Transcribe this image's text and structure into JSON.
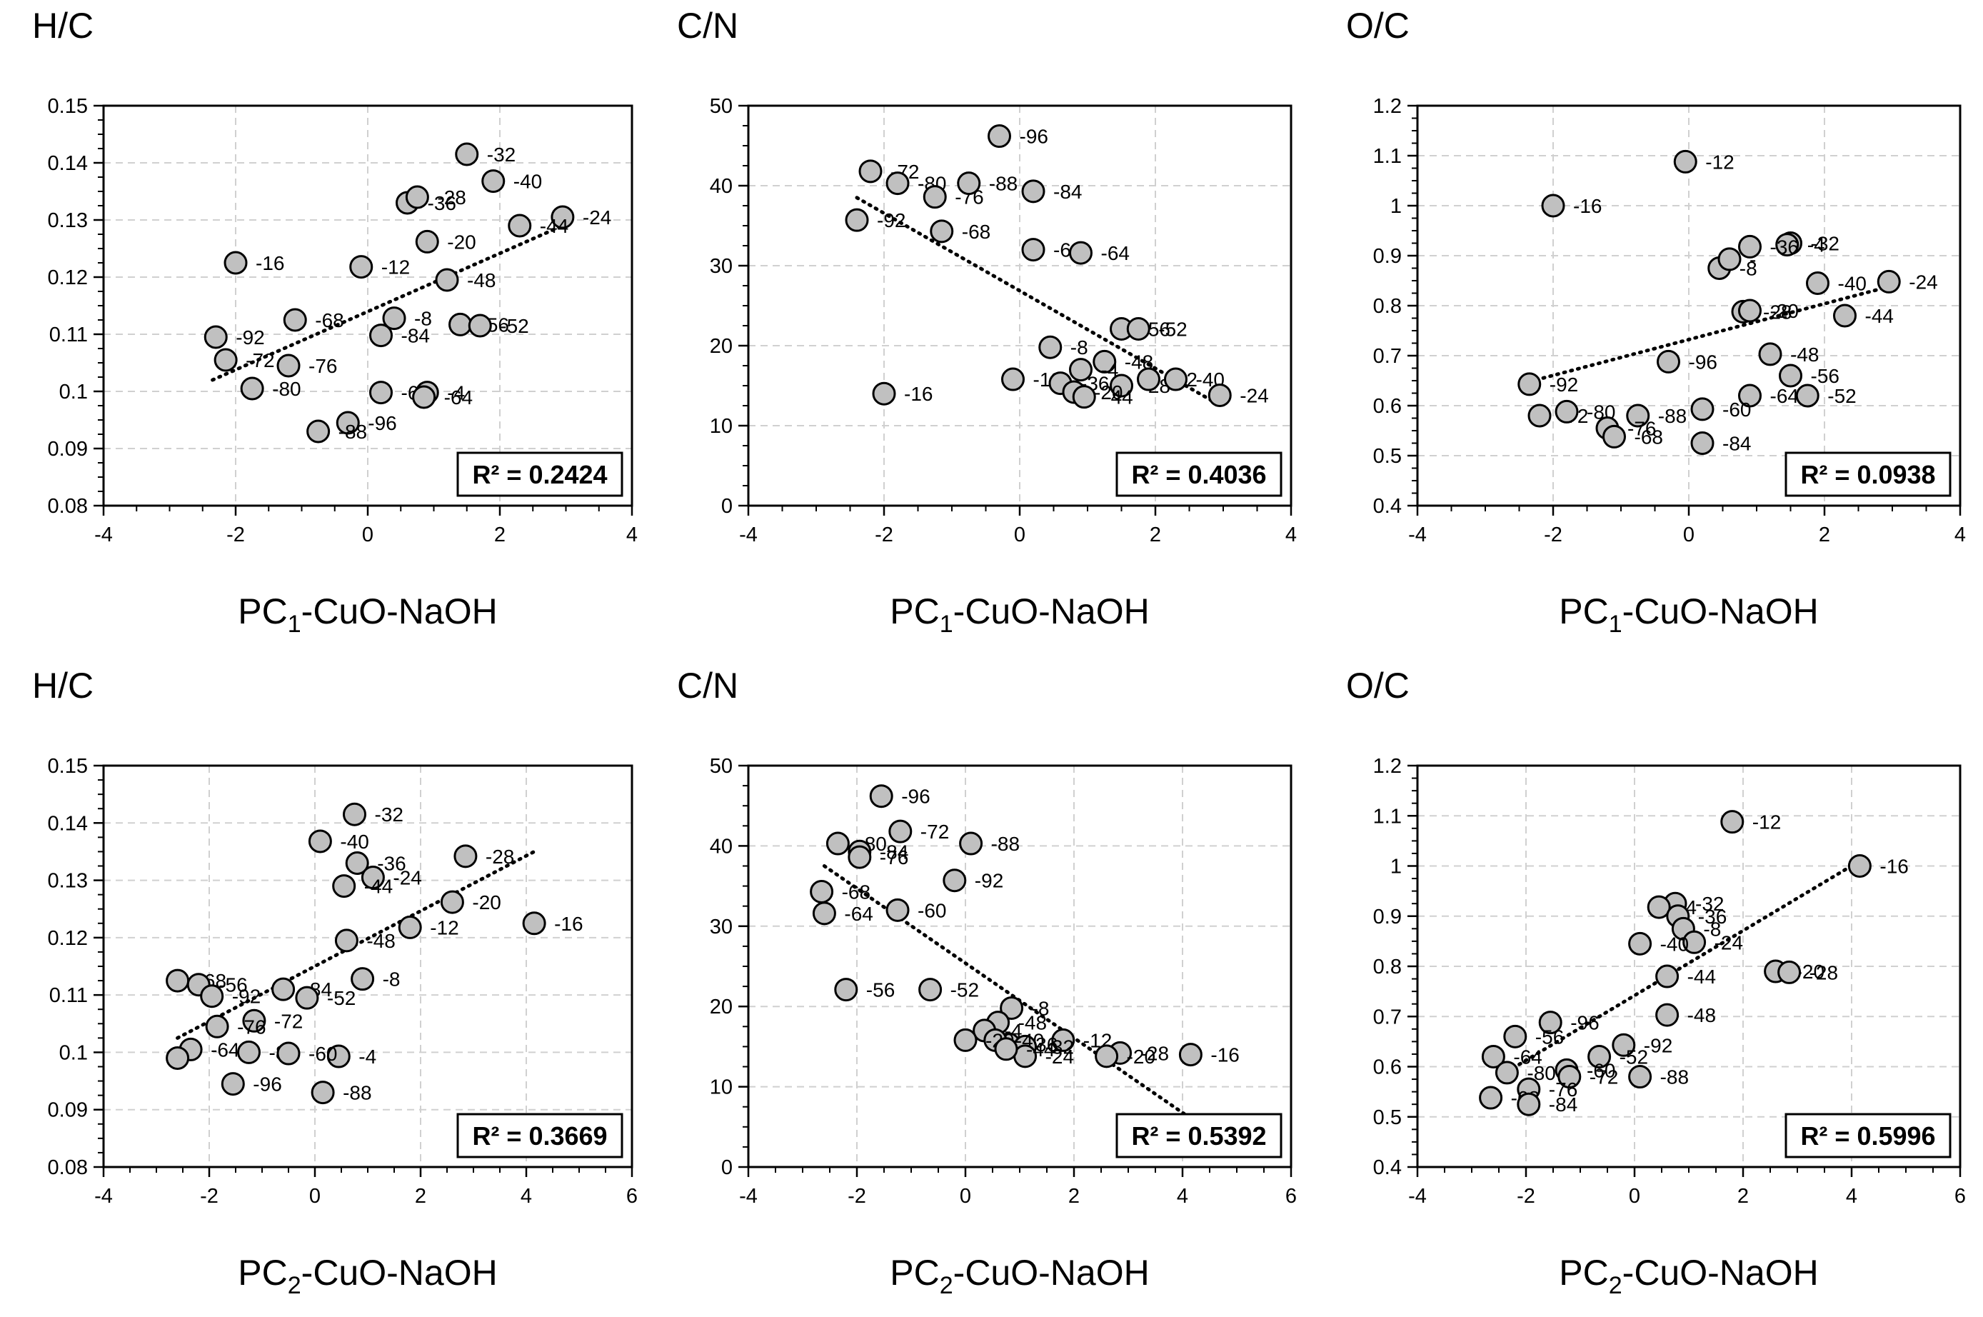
{
  "colors": {
    "marker_fill": "#c0c0c0",
    "marker_stroke": "#000000",
    "grid": "#d0d0d0",
    "trend": "#000000",
    "background": "#ffffff"
  },
  "chart_data": [
    {
      "type": "scatter",
      "title": "H/C",
      "xlabel_main": "PC",
      "xlabel_sub": "1",
      "xlabel_rest": "-CuO-NaOH",
      "xlim": [
        -4,
        4
      ],
      "xticks": [
        -4,
        -2,
        0,
        2,
        4
      ],
      "ylim": [
        0.08,
        0.15
      ],
      "yticks": [
        "0.08",
        "0.09",
        "0.1",
        "0.11",
        "0.12",
        "0.13",
        "0.14",
        "0.15"
      ],
      "r2": "R² = 0.2424",
      "trend": [
        [
          -2.35,
          0.102
        ],
        [
          2.95,
          0.129
        ]
      ],
      "points": [
        {
          "x": 1.5,
          "y": 0.1415,
          "label": "-32"
        },
        {
          "x": 1.9,
          "y": 0.1368,
          "label": "-40"
        },
        {
          "x": 0.6,
          "y": 0.133,
          "label": "-36"
        },
        {
          "x": 0.75,
          "y": 0.134,
          "label": "-28"
        },
        {
          "x": 2.95,
          "y": 0.1305,
          "label": "-24"
        },
        {
          "x": 2.3,
          "y": 0.129,
          "label": "-44"
        },
        {
          "x": 0.9,
          "y": 0.1262,
          "label": "-20"
        },
        {
          "x": -2.0,
          "y": 0.1225,
          "label": "-16"
        },
        {
          "x": -0.1,
          "y": 0.1218,
          "label": "-12"
        },
        {
          "x": 1.2,
          "y": 0.1195,
          "label": "-48"
        },
        {
          "x": -1.1,
          "y": 0.1125,
          "label": "-68"
        },
        {
          "x": 0.4,
          "y": 0.1128,
          "label": "-8"
        },
        {
          "x": 0.2,
          "y": 0.1098,
          "label": "-84"
        },
        {
          "x": 1.4,
          "y": 0.1117,
          "label": "-56"
        },
        {
          "x": 1.7,
          "y": 0.1115,
          "label": "-52"
        },
        {
          "x": -2.3,
          "y": 0.1095,
          "label": "-92"
        },
        {
          "x": -2.15,
          "y": 0.1055,
          "label": "-72"
        },
        {
          "x": -1.2,
          "y": 0.1045,
          "label": "-76"
        },
        {
          "x": -1.75,
          "y": 0.1005,
          "label": "-80"
        },
        {
          "x": 0.2,
          "y": 0.0998,
          "label": "-60"
        },
        {
          "x": 0.9,
          "y": 0.0998,
          "label": "-4"
        },
        {
          "x": 0.85,
          "y": 0.099,
          "label": "-64"
        },
        {
          "x": -0.3,
          "y": 0.0945,
          "label": "-96"
        },
        {
          "x": -0.75,
          "y": 0.093,
          "label": "-88"
        }
      ]
    },
    {
      "type": "scatter",
      "title": "C/N",
      "xlabel_main": "PC",
      "xlabel_sub": "1",
      "xlabel_rest": "-CuO-NaOH",
      "xlim": [
        -4,
        4
      ],
      "xticks": [
        -4,
        -2,
        0,
        2,
        4
      ],
      "ylim": [
        0,
        50
      ],
      "yticks": [
        "0",
        "10",
        "20",
        "30",
        "40",
        "50"
      ],
      "r2": "R² = 0.4036",
      "trend": [
        [
          -2.4,
          38.5
        ],
        [
          2.9,
          12.8
        ]
      ],
      "points": [
        {
          "x": -0.3,
          "y": 46.2,
          "label": "-96"
        },
        {
          "x": -2.2,
          "y": 41.8,
          "label": "-72"
        },
        {
          "x": -1.8,
          "y": 40.3,
          "label": "-80"
        },
        {
          "x": -1.25,
          "y": 38.6,
          "label": "-76"
        },
        {
          "x": -0.75,
          "y": 40.3,
          "label": "-88"
        },
        {
          "x": 0.2,
          "y": 39.3,
          "label": "-84"
        },
        {
          "x": -2.4,
          "y": 35.7,
          "label": "-92"
        },
        {
          "x": -1.15,
          "y": 34.3,
          "label": "-68"
        },
        {
          "x": 0.2,
          "y": 32.0,
          "label": "-60"
        },
        {
          "x": 0.9,
          "y": 31.6,
          "label": "-64"
        },
        {
          "x": 1.5,
          "y": 22.1,
          "label": "-56"
        },
        {
          "x": 1.75,
          "y": 22.1,
          "label": "-52"
        },
        {
          "x": 0.45,
          "y": 19.8,
          "label": "-8"
        },
        {
          "x": 1.25,
          "y": 18.0,
          "label": "-48"
        },
        {
          "x": 0.9,
          "y": 17.0,
          "label": "-4"
        },
        {
          "x": -0.1,
          "y": 15.8,
          "label": "-12"
        },
        {
          "x": 0.6,
          "y": 15.3,
          "label": "-36"
        },
        {
          "x": 1.5,
          "y": 15.0,
          "label": "-28"
        },
        {
          "x": 1.9,
          "y": 15.8,
          "label": "-32"
        },
        {
          "x": 2.3,
          "y": 15.8,
          "label": "-40"
        },
        {
          "x": 2.95,
          "y": 13.8,
          "label": "-24"
        },
        {
          "x": 0.8,
          "y": 14.2,
          "label": "-20"
        },
        {
          "x": 0.95,
          "y": 13.6,
          "label": "-44"
        },
        {
          "x": -2.0,
          "y": 14.0,
          "label": "-16"
        }
      ]
    },
    {
      "type": "scatter",
      "title": "O/C",
      "xlabel_main": "PC",
      "xlabel_sub": "1",
      "xlabel_rest": "-CuO-NaOH",
      "xlim": [
        -4,
        4
      ],
      "xticks": [
        -4,
        -2,
        0,
        2,
        4
      ],
      "ylim": [
        0.4,
        1.2
      ],
      "yticks": [
        "0.4",
        "0.5",
        "0.6",
        "0.7",
        "0.8",
        "0.9",
        "1",
        "1.1",
        "1.2"
      ],
      "r2": "R² = 0.0938",
      "trend": [
        [
          -2.35,
          0.648
        ],
        [
          2.95,
          0.838
        ]
      ],
      "points": [
        {
          "x": -0.05,
          "y": 1.088,
          "label": "-12"
        },
        {
          "x": -2.0,
          "y": 1.0,
          "label": "-16"
        },
        {
          "x": 1.5,
          "y": 0.925,
          "label": "-32"
        },
        {
          "x": 1.45,
          "y": 0.922,
          "label": "-4"
        },
        {
          "x": 0.9,
          "y": 0.918,
          "label": "-36"
        },
        {
          "x": 0.45,
          "y": 0.875,
          "label": "-8"
        },
        {
          "x": 0.6,
          "y": 0.893,
          "label": "-"
        },
        {
          "x": 1.9,
          "y": 0.845,
          "label": "-40"
        },
        {
          "x": 2.95,
          "y": 0.848,
          "label": "-24"
        },
        {
          "x": 0.8,
          "y": 0.788,
          "label": "-28"
        },
        {
          "x": 0.9,
          "y": 0.79,
          "label": "-20"
        },
        {
          "x": 2.3,
          "y": 0.78,
          "label": "-44"
        },
        {
          "x": 1.2,
          "y": 0.703,
          "label": "-48"
        },
        {
          "x": -0.3,
          "y": 0.688,
          "label": "-96"
        },
        {
          "x": 1.5,
          "y": 0.66,
          "label": "-56"
        },
        {
          "x": -2.35,
          "y": 0.643,
          "label": "-92"
        },
        {
          "x": 0.9,
          "y": 0.62,
          "label": "-64"
        },
        {
          "x": 1.75,
          "y": 0.62,
          "label": "-52"
        },
        {
          "x": 0.2,
          "y": 0.593,
          "label": "-60"
        },
        {
          "x": -2.2,
          "y": 0.58,
          "label": "-72"
        },
        {
          "x": -1.8,
          "y": 0.588,
          "label": "-80"
        },
        {
          "x": -0.75,
          "y": 0.58,
          "label": "-88"
        },
        {
          "x": -1.2,
          "y": 0.555,
          "label": "-76"
        },
        {
          "x": -1.1,
          "y": 0.538,
          "label": "-68"
        },
        {
          "x": 0.2,
          "y": 0.525,
          "label": "-84"
        }
      ]
    },
    {
      "type": "scatter",
      "title": "H/C",
      "xlabel_main": "PC",
      "xlabel_sub": "2",
      "xlabel_rest": "-CuO-NaOH",
      "xlim": [
        -4,
        6
      ],
      "xticks": [
        -4,
        -2,
        0,
        2,
        4,
        6
      ],
      "ylim": [
        0.08,
        0.15
      ],
      "yticks": [
        "0.08",
        "0.09",
        "0.1",
        "0.11",
        "0.12",
        "0.13",
        "0.14",
        "0.15"
      ],
      "r2": "R² = 0.3669",
      "trend": [
        [
          -2.6,
          0.1025
        ],
        [
          4.15,
          0.135
        ]
      ],
      "points": [
        {
          "x": 0.75,
          "y": 0.1415,
          "label": "-32"
        },
        {
          "x": 0.1,
          "y": 0.1368,
          "label": "-40"
        },
        {
          "x": 2.85,
          "y": 0.1342,
          "label": "-28"
        },
        {
          "x": 0.8,
          "y": 0.133,
          "label": "-36"
        },
        {
          "x": 1.1,
          "y": 0.1305,
          "label": "-24"
        },
        {
          "x": 0.55,
          "y": 0.129,
          "label": "-44"
        },
        {
          "x": 2.6,
          "y": 0.1262,
          "label": "-20"
        },
        {
          "x": 4.15,
          "y": 0.1225,
          "label": "-16"
        },
        {
          "x": 1.8,
          "y": 0.1218,
          "label": "-12"
        },
        {
          "x": 0.6,
          "y": 0.1195,
          "label": "-48"
        },
        {
          "x": -2.6,
          "y": 0.1125,
          "label": "-68"
        },
        {
          "x": -2.2,
          "y": 0.1118,
          "label": "-56"
        },
        {
          "x": -0.6,
          "y": 0.111,
          "label": "-84"
        },
        {
          "x": 0.9,
          "y": 0.1128,
          "label": "-8"
        },
        {
          "x": -0.15,
          "y": 0.1095,
          "label": "-52"
        },
        {
          "x": -1.95,
          "y": 0.1098,
          "label": "-92"
        },
        {
          "x": -1.15,
          "y": 0.1055,
          "label": "-72"
        },
        {
          "x": -1.85,
          "y": 0.1045,
          "label": "-76"
        },
        {
          "x": -1.25,
          "y": 0.1,
          "label": "-80"
        },
        {
          "x": -2.35,
          "y": 0.1005,
          "label": "-64"
        },
        {
          "x": -2.6,
          "y": 0.099,
          "label": ""
        },
        {
          "x": 0.45,
          "y": 0.0993,
          "label": "-4"
        },
        {
          "x": -1.55,
          "y": 0.0945,
          "label": "-96"
        },
        {
          "x": 0.15,
          "y": 0.093,
          "label": "-88"
        },
        {
          "x": -0.5,
          "y": 0.0998,
          "label": "-60"
        }
      ]
    },
    {
      "type": "scatter",
      "title": "C/N",
      "xlabel_main": "PC",
      "xlabel_sub": "2",
      "xlabel_rest": "-CuO-NaOH",
      "xlim": [
        -4,
        6
      ],
      "xticks": [
        -4,
        -2,
        0,
        2,
        4,
        6
      ],
      "ylim": [
        0,
        50
      ],
      "yticks": [
        "0",
        "10",
        "20",
        "30",
        "40",
        "50"
      ],
      "r2": "R² = 0.5392",
      "trend": [
        [
          -2.6,
          37.5
        ],
        [
          4.1,
          6.3
        ]
      ],
      "points": [
        {
          "x": -1.55,
          "y": 46.2,
          "label": "-96"
        },
        {
          "x": -1.2,
          "y": 41.8,
          "label": "-72"
        },
        {
          "x": -2.35,
          "y": 40.3,
          "label": "-80"
        },
        {
          "x": 0.1,
          "y": 40.3,
          "label": "-88"
        },
        {
          "x": -1.95,
          "y": 39.3,
          "label": "-84"
        },
        {
          "x": -1.95,
          "y": 38.6,
          "label": "-76"
        },
        {
          "x": -0.2,
          "y": 35.7,
          "label": "-92"
        },
        {
          "x": -2.65,
          "y": 34.3,
          "label": "-68"
        },
        {
          "x": -2.6,
          "y": 31.6,
          "label": "-64"
        },
        {
          "x": -1.25,
          "y": 32.0,
          "label": "-60"
        },
        {
          "x": -2.2,
          "y": 22.1,
          "label": "-56"
        },
        {
          "x": -0.65,
          "y": 22.1,
          "label": "-52"
        },
        {
          "x": 0.85,
          "y": 19.8,
          "label": "-8"
        },
        {
          "x": 0.6,
          "y": 18.0,
          "label": "-48"
        },
        {
          "x": 0.35,
          "y": 17.0,
          "label": "-4"
        },
        {
          "x": 1.8,
          "y": 15.8,
          "label": "-12"
        },
        {
          "x": 0.8,
          "y": 15.3,
          "label": "-36"
        },
        {
          "x": 1.1,
          "y": 15.0,
          "label": "-32"
        },
        {
          "x": 0.55,
          "y": 15.8,
          "label": "-40"
        },
        {
          "x": 1.1,
          "y": 13.8,
          "label": "-24"
        },
        {
          "x": 0.0,
          "y": 15.8,
          "label": "-20"
        },
        {
          "x": 0.75,
          "y": 14.7,
          "label": "-44"
        },
        {
          "x": 2.85,
          "y": 14.2,
          "label": "-28"
        },
        {
          "x": 2.6,
          "y": 13.8,
          "label": "-20"
        },
        {
          "x": 4.15,
          "y": 14.0,
          "label": "-16"
        }
      ]
    },
    {
      "type": "scatter",
      "title": "O/C",
      "xlabel_main": "PC",
      "xlabel_sub": "2",
      "xlabel_rest": "-CuO-NaOH",
      "xlim": [
        -4,
        6
      ],
      "xticks": [
        -4,
        -2,
        0,
        2,
        4,
        6
      ],
      "ylim": [
        0.4,
        1.2
      ],
      "yticks": [
        "0.4",
        "0.5",
        "0.6",
        "0.7",
        "0.8",
        "0.9",
        "1",
        "1.1",
        "1.2"
      ],
      "r2": "R² = 0.5996",
      "trend": [
        [
          -2.35,
          0.59
        ],
        [
          4.15,
          1.01
        ]
      ],
      "points": [
        {
          "x": 1.8,
          "y": 1.088,
          "label": "-12"
        },
        {
          "x": 4.15,
          "y": 1.0,
          "label": "-16"
        },
        {
          "x": 0.75,
          "y": 0.925,
          "label": "-32"
        },
        {
          "x": 0.45,
          "y": 0.918,
          "label": "-4"
        },
        {
          "x": 0.8,
          "y": 0.9,
          "label": "-36"
        },
        {
          "x": 0.9,
          "y": 0.875,
          "label": "-8"
        },
        {
          "x": 1.1,
          "y": 0.848,
          "label": "-24"
        },
        {
          "x": 0.1,
          "y": 0.845,
          "label": "-40"
        },
        {
          "x": 2.6,
          "y": 0.79,
          "label": "-20"
        },
        {
          "x": 2.85,
          "y": 0.788,
          "label": "-28"
        },
        {
          "x": 0.6,
          "y": 0.78,
          "label": "-44"
        },
        {
          "x": 0.6,
          "y": 0.703,
          "label": "-48"
        },
        {
          "x": -1.55,
          "y": 0.688,
          "label": "-96"
        },
        {
          "x": -2.2,
          "y": 0.66,
          "label": "-56"
        },
        {
          "x": -0.2,
          "y": 0.643,
          "label": "-92"
        },
        {
          "x": -2.6,
          "y": 0.62,
          "label": "-64"
        },
        {
          "x": -0.65,
          "y": 0.62,
          "label": "-52"
        },
        {
          "x": -1.25,
          "y": 0.593,
          "label": "-60"
        },
        {
          "x": -2.35,
          "y": 0.588,
          "label": "-80"
        },
        {
          "x": -1.2,
          "y": 0.58,
          "label": "-72"
        },
        {
          "x": 0.1,
          "y": 0.58,
          "label": "-88"
        },
        {
          "x": -1.95,
          "y": 0.555,
          "label": "-76"
        },
        {
          "x": -2.65,
          "y": 0.538,
          "label": "-68"
        },
        {
          "x": -1.95,
          "y": 0.525,
          "label": "-84"
        }
      ]
    }
  ]
}
